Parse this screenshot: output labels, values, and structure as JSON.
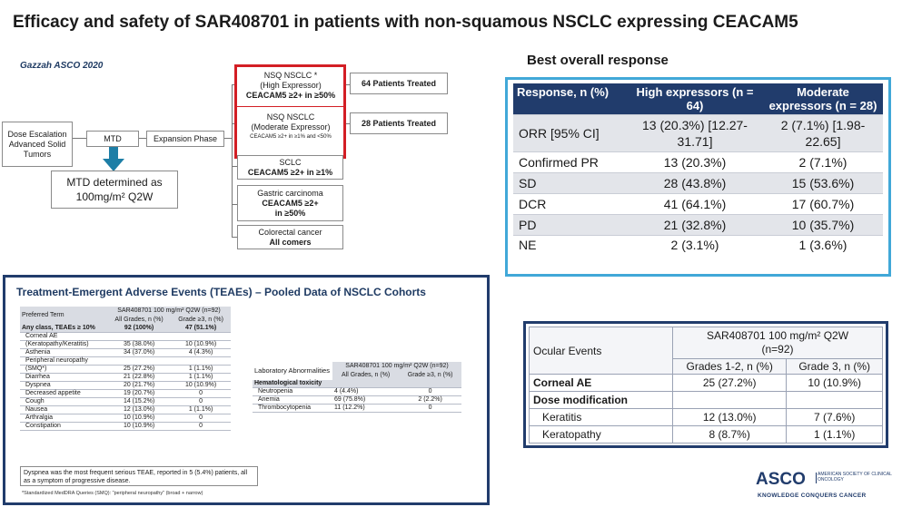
{
  "title": "Efficacy and safety of SAR408701 in patients with non-squamous NSCLC expressing CEACAM5",
  "author": "Gazzah ASCO 2020",
  "flow": {
    "dose_escalation": "Dose Escalation Advanced Solid Tumors",
    "mtd": "MTD",
    "expansion": "Expansion Phase",
    "mtd_note_line1": "MTD determined as",
    "mtd_note_line2": "100mg/m² Q2W",
    "cohorts": [
      {
        "line1": "NSQ NSCLC *",
        "line2": "(High Expressor)",
        "line3": "CEACAM5 ≥2+ in ≥50%",
        "treated": "64 Patients Treated"
      },
      {
        "line1": "NSQ NSCLC",
        "line2": "(Moderate Expressor)",
        "line3": "CEACAM5 ≥2+ in ≥1% and <50%",
        "treated": "28 Patients Treated"
      },
      {
        "line1": "SCLC",
        "line3": "CEACAM5 ≥2+ in ≥1%"
      },
      {
        "line1": "Gastric carcinoma",
        "line3": "CEACAM5 ≥2+ in ≥50%"
      },
      {
        "line1": "Colorectal cancer",
        "line3": "All comers"
      }
    ]
  },
  "best_response": {
    "heading": "Best overall response",
    "columns": [
      "Response, n (%)",
      "High expressors (n = 64)",
      "Moderate expressors (n = 28)"
    ],
    "rows": [
      {
        "label": "ORR [95% CI]",
        "high": "13 (20.3%) [12.27-31.71]",
        "mod": "2 (7.1%) [1.98-22.65]"
      },
      {
        "label": "Confirmed PR",
        "high": "13 (20.3%)",
        "mod": "2 (7.1%)"
      },
      {
        "label": "SD",
        "high": "28 (43.8%)",
        "mod": "15 (53.6%)"
      },
      {
        "label": "DCR",
        "high": "41 (64.1%)",
        "mod": "17 (60.7%)"
      },
      {
        "label": "PD",
        "high": "21 (32.8%)",
        "mod": "10 (35.7%)"
      },
      {
        "label": "NE",
        "high": "2 (3.1%)",
        "mod": "1 (3.6%)"
      }
    ]
  },
  "teae": {
    "heading": "Treatment-Emergent Adverse Events (TEAEs) – Pooled Data of NSCLC Cohorts",
    "header_group": "SAR408701 100 mg/m² Q2W (n=92)",
    "col_term": "Preferred Term",
    "col_all": "All Grades, n (%)",
    "col_g3": "Grade ≥3, n (%)",
    "rows": [
      {
        "term": "Any class, TEAEs ≥ 10%",
        "all": "92 (100%)",
        "g3": "47 (51.1%)",
        "bold": true
      },
      {
        "term": "Corneal AE",
        "all": "",
        "g3": ""
      },
      {
        "term": "(Keratopathy/Keratitis)",
        "all": "35 (38.0%)",
        "g3": "10 (10.9%)"
      },
      {
        "term": "Asthenia",
        "all": "34 (37.0%)",
        "g3": "4 (4.3%)"
      },
      {
        "term": "Peripheral neuropathy",
        "all": "",
        "g3": ""
      },
      {
        "term": "(SMQ*)",
        "all": "25 (27.2%)",
        "g3": "1 (1.1%)"
      },
      {
        "term": "Diarrhea",
        "all": "21 (22.8%)",
        "g3": "1 (1.1%)"
      },
      {
        "term": "Dyspnea",
        "all": "20 (21.7%)",
        "g3": "10 (10.9%)"
      },
      {
        "term": "Decreased appetite",
        "all": "19 (20.7%)",
        "g3": "0"
      },
      {
        "term": "Cough",
        "all": "14 (15.2%)",
        "g3": "0"
      },
      {
        "term": "Nausea",
        "all": "12 (13.0%)",
        "g3": "1 (1.1%)"
      },
      {
        "term": "Arthralgia",
        "all": "10 (10.9%)",
        "g3": "0"
      },
      {
        "term": "Constipation",
        "all": "10 (10.9%)",
        "g3": "0"
      }
    ],
    "note": "Dyspnea was the most frequent serious TEAE, reported in 5 (5.4%) patients, all as a symptom of progressive disease.",
    "footnote": "*Standardized MedDRA Queries (SMQ): \"peripheral neuropathy\" (broad + narrow)"
  },
  "lab": {
    "header_group": "SAR408701 100 mg/m² Q2W (n=92)",
    "col_term": "Laboratory Abnormalities",
    "col_all": "All Grades, n (%)",
    "col_g3": "Grade ≥3, n (%)",
    "section": "Hematological toxicity",
    "rows": [
      {
        "term": "Neutropenia",
        "all": "4 (4.4%)",
        "g3": "0"
      },
      {
        "term": "Anemia",
        "all": "69 (75.8%)",
        "g3": "2 (2.2%)"
      },
      {
        "term": "Thrombocytopenia",
        "all": "11 (12.2%)",
        "g3": "0"
      }
    ]
  },
  "ocular": {
    "header_group": "SAR408701 100 mg/m² Q2W (n=92)",
    "col_term": "Ocular Events",
    "col_g12": "Grades 1-2, n (%)",
    "col_g3": "Grade 3, n (%)",
    "rows": [
      {
        "term": "Corneal AE",
        "g12": "25 (27.2%)",
        "g3": "10 (10.9%)",
        "bold": true
      },
      {
        "term": "Dose modification",
        "g12": "",
        "g3": "",
        "bold": true
      },
      {
        "term": "Keratitis",
        "g12": "12 (13.0%)",
        "g3": "7 (7.6%)"
      },
      {
        "term": "Keratopathy",
        "g12": "8 (8.7%)",
        "g3": "1 (1.1%)"
      }
    ]
  },
  "logo": {
    "mark": "ASCO",
    "name": "AMERICAN SOCIETY OF CLINICAL ONCOLOGY",
    "tagline": "KNOWLEDGE CONQUERS CANCER"
  },
  "colors": {
    "navy": "#213c6c",
    "accent_blue": "#41a8d8",
    "highlight_red": "#d31e25"
  }
}
